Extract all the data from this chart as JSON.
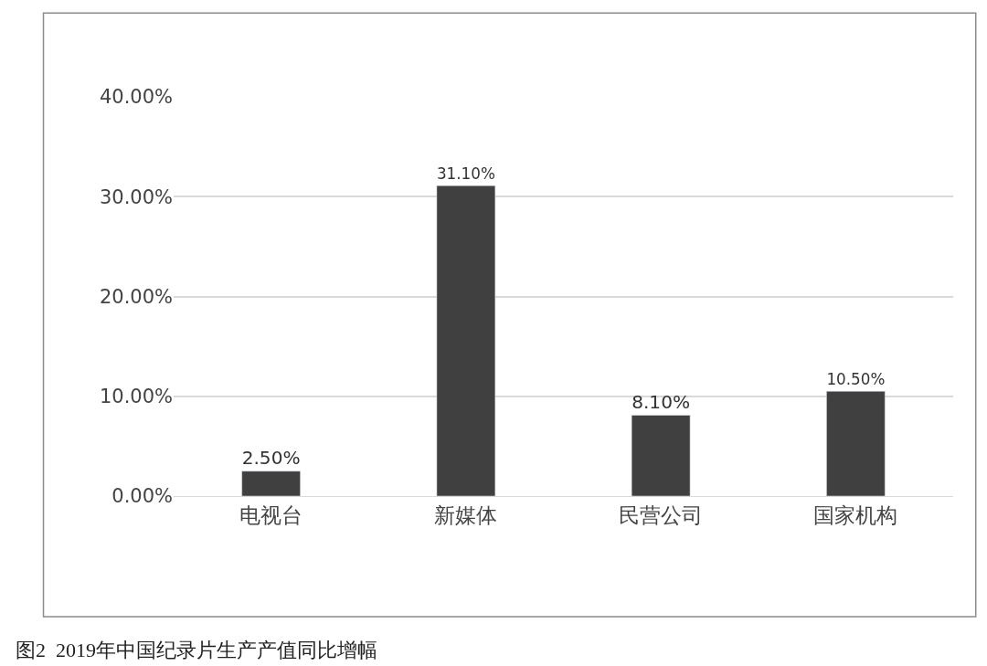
{
  "chart_data": {
    "type": "bar",
    "categories": [
      "电视台",
      "新媒体",
      "民营公司",
      "国家机构"
    ],
    "values": [
      2.5,
      31.1,
      8.1,
      10.5
    ],
    "value_labels": [
      "2.50%",
      "31.10%",
      "8.10%",
      "10.50%"
    ],
    "color": "#404040",
    "ylim": [
      0,
      40
    ],
    "yticks": [
      {
        "value": 0,
        "label": "0.00%"
      },
      {
        "value": 10,
        "label": "10.00%"
      },
      {
        "value": 20,
        "label": "20.00%"
      },
      {
        "value": 30,
        "label": "30.00%"
      },
      {
        "value": 40,
        "label": "40.00%"
      }
    ],
    "grid": "y",
    "annotations": [
      "图2  2019年中国纪录片生产产值同比增幅"
    ]
  }
}
